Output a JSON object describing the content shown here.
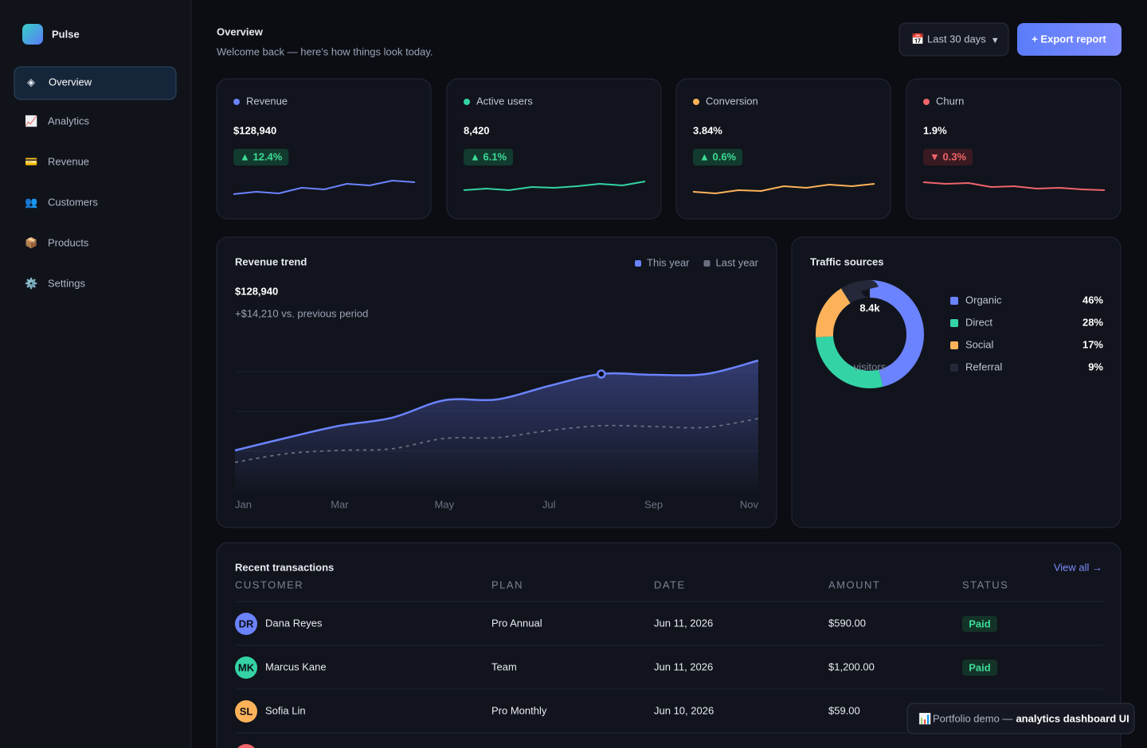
{
  "sidebar": {
    "brand": "Pulse",
    "active": 0,
    "nav": [
      {
        "icon": "◈",
        "label": "Overview"
      },
      {
        "icon": "📈",
        "label": "Analytics"
      },
      {
        "icon": "💳",
        "label": "Revenue"
      },
      {
        "icon": "👥",
        "label": "Customers"
      },
      {
        "icon": "📦",
        "label": "Products"
      },
      {
        "icon": "⚙️",
        "label": "Settings"
      }
    ]
  },
  "header": {
    "title": "Overview",
    "subtitle": "Welcome back — here's how things look today.",
    "date_range": {
      "icon": "📅",
      "label": "Last 30 days",
      "caret": "▾"
    },
    "export": "+ Export report"
  },
  "kpis": [
    {
      "label": "Revenue",
      "value": "$128,940",
      "change": "▲ 12.4%",
      "trend": "up",
      "color": "#6b83ff",
      "sparkline": [
        1,
        4,
        2,
        9,
        7,
        14,
        12,
        18,
        16
      ]
    },
    {
      "label": "Active users",
      "value": "8,420",
      "change": "▲ 6.1%",
      "trend": "up",
      "color": "#34d3a6",
      "sparkline": [
        6,
        8,
        6,
        10,
        9,
        11,
        14,
        12,
        17
      ]
    },
    {
      "label": "Conversion",
      "value": "3.84%",
      "change": "▲ 0.6%",
      "trend": "up",
      "color": "#fdb25a",
      "sparkline": [
        4,
        2,
        6,
        5,
        11,
        9,
        13,
        11,
        14
      ]
    },
    {
      "label": "Churn",
      "value": "1.9%",
      "change": "▼ 0.3%",
      "trend": "down",
      "color": "#f0646b",
      "sparkline": [
        16,
        14,
        15,
        10,
        11,
        8,
        9,
        7,
        6
      ]
    }
  ],
  "chart_data": [
    {
      "type": "line",
      "title": "Revenue trend",
      "headline": "$128,940",
      "subtitle": "+$14,210 vs. previous period",
      "categories": [
        "Jan",
        null,
        "Mar",
        null,
        "May",
        null,
        "Jul",
        null,
        "Sep",
        null,
        "Nov"
      ],
      "series": [
        {
          "name": "This year",
          "color": "#6b83ff",
          "values": [
            25.5,
            33.5,
            41,
            46,
            57,
            57.5,
            66,
            73.5,
            73,
            73.5,
            82
          ]
        },
        {
          "name": "Last year",
          "color": "#6b7080",
          "values": [
            18,
            23.5,
            25.5,
            26.5,
            33,
            33.5,
            38,
            41,
            40.5,
            40,
            45.5
          ]
        }
      ],
      "ylim": [
        0,
        100
      ],
      "yticks": [
        25,
        50,
        75
      ],
      "grid": true,
      "highlight": 7
    },
    {
      "type": "pie",
      "title": "Traffic sources",
      "center_value": "8.4k",
      "center_label": "visitors",
      "categories": [
        "Organic",
        "Direct",
        "Social",
        "Referral"
      ],
      "values": [
        46,
        28,
        17,
        9
      ],
      "value_labels": [
        "46%",
        "28%",
        "17%",
        "9%"
      ],
      "colors": [
        "#6b83ff",
        "#34d3a6",
        "#fdb25a",
        "#242838"
      ]
    }
  ],
  "transactions": {
    "title": "Recent transactions",
    "link": "View all →",
    "columns": [
      "CUSTOMER",
      "PLAN",
      "DATE",
      "AMOUNT",
      "STATUS"
    ],
    "rows": [
      {
        "initials": "DR",
        "color": "#6b83ff",
        "customer": "Dana Reyes",
        "plan": "Pro Annual",
        "date": "Jun 11, 2026",
        "amount": "$590.00",
        "status": "Paid"
      },
      {
        "initials": "MK",
        "color": "#34d3a6",
        "customer": "Marcus Kane",
        "plan": "Team",
        "date": "Jun 11, 2026",
        "amount": "$1,200.00",
        "status": "Paid"
      },
      {
        "initials": "SL",
        "color": "#fdb25a",
        "customer": "Sofia Lin",
        "plan": "Pro Monthly",
        "date": "Jun 10, 2026",
        "amount": "$59.00"
      }
    ]
  },
  "footer_badge": {
    "icon": "📊",
    "text": "Portfolio demo —",
    "emphasis": "analytics dashboard UI"
  }
}
